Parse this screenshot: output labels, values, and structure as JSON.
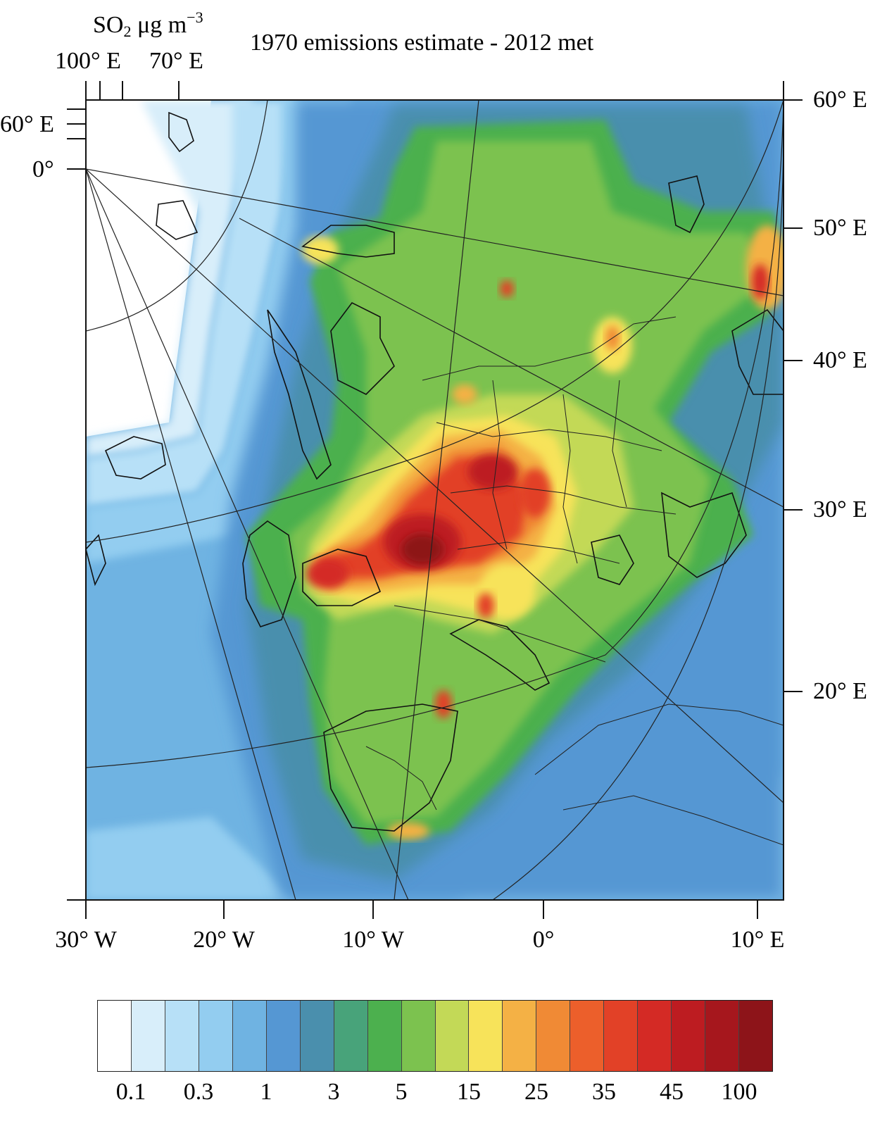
{
  "title": "1970 emissions estimate - 2012 met",
  "units": {
    "species": "SO",
    "subscript": "2",
    "rest": " μg m",
    "superscript": "−3"
  },
  "top_longitude_labels": [
    "100° E",
    "70° E"
  ],
  "left_labels": [
    "60° E",
    "0°"
  ],
  "right_labels": [
    "60° E",
    "50° E",
    "40° E",
    "30° E",
    "20° E"
  ],
  "bottom_labels": [
    "30° W",
    "20° W",
    "10° W",
    "0°",
    "10° E"
  ],
  "colorbar": {
    "colors": [
      "#ffffff",
      "#d8eefa",
      "#b7e0f7",
      "#93cdf0",
      "#6fb3e2",
      "#5597d3",
      "#4a8fad",
      "#48a37a",
      "#4cb04e",
      "#7cc24f",
      "#c3d957",
      "#f7e35a",
      "#f4b145",
      "#f08a35",
      "#ec5f2b",
      "#e24127",
      "#d42a25",
      "#bd1c21",
      "#a6171d",
      "#8d1419"
    ],
    "labels": [
      "0.1",
      "0.3",
      "1",
      "3",
      "5",
      "15",
      "25",
      "35",
      "45",
      "100"
    ]
  }
}
